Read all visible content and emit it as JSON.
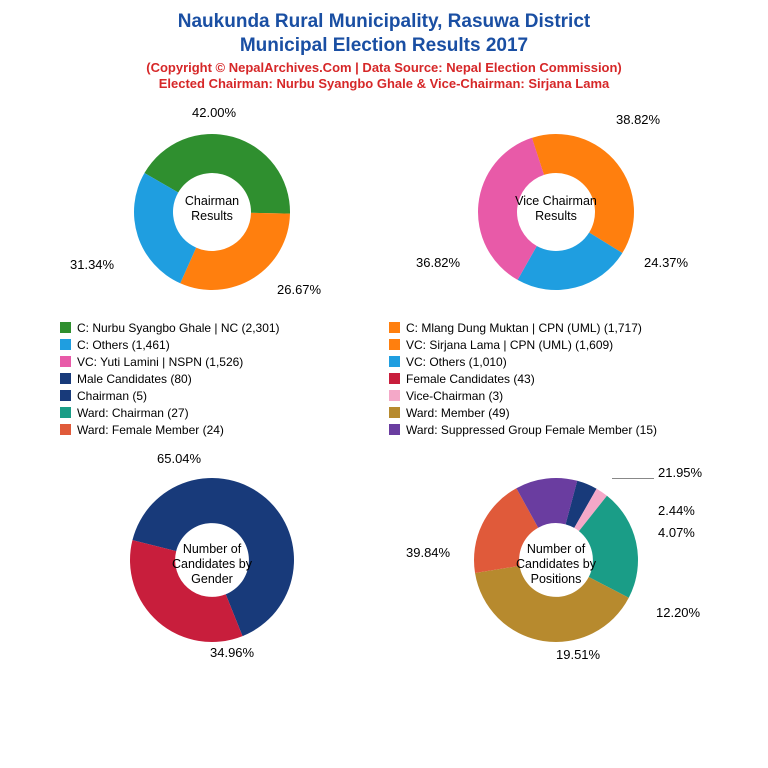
{
  "title": {
    "line1": "Naukunda Rural Municipality, Rasuwa District",
    "line2": "Municipal Election Results 2017",
    "color": "#1a4fa3",
    "sub1": "(Copyright © NepalArchives.Com | Data Source: Nepal Election Commission)",
    "sub1_color": "#d62728",
    "sub2": "Elected Chairman: Nurbu Syangbo Ghale & Vice-Chairman: Sirjana Lama",
    "sub2_color": "#d62728"
  },
  "charts": {
    "chairman": {
      "type": "donut",
      "center_label": "Chairman Results",
      "slices": [
        {
          "pct": 42.0,
          "color": "#2f8f2f",
          "label": "42.00%"
        },
        {
          "pct": 31.34,
          "color": "#ff7f0e",
          "label": "31.34%"
        },
        {
          "pct": 26.67,
          "color": "#1f9ee0",
          "label": "26.67%"
        }
      ],
      "inner_ratio": 0.5
    },
    "vicechairman": {
      "type": "donut",
      "center_label": "Vice Chairman Results",
      "slices": [
        {
          "pct": 38.82,
          "color": "#ff7f0e",
          "label": "38.82%"
        },
        {
          "pct": 24.37,
          "color": "#1f9ee0",
          "label": "24.37%"
        },
        {
          "pct": 36.82,
          "color": "#e85aa8",
          "label": "36.82%"
        }
      ],
      "inner_ratio": 0.5
    },
    "gender": {
      "type": "donut",
      "center_label": "Number of Candidates by Gender",
      "slices": [
        {
          "pct": 65.04,
          "color": "#183a7a",
          "label": "65.04%"
        },
        {
          "pct": 34.96,
          "color": "#c81e3c",
          "label": "34.96%"
        }
      ],
      "inner_ratio": 0.45
    },
    "positions": {
      "type": "donut",
      "center_label": "Number of Candidates by Positions",
      "slices": [
        {
          "pct": 4.07,
          "color": "#183a7a",
          "label": "4.07%"
        },
        {
          "pct": 2.44,
          "color": "#f4a8c8",
          "label": "2.44%"
        },
        {
          "pct": 21.95,
          "color": "#1a9d87",
          "label": "21.95%"
        },
        {
          "pct": 39.84,
          "color": "#b78a2e",
          "label": "39.84%"
        },
        {
          "pct": 19.51,
          "color": "#e05a3a",
          "label": "19.51%"
        },
        {
          "pct": 12.2,
          "color": "#6a3da0",
          "label": "12.20%"
        }
      ],
      "inner_ratio": 0.45
    }
  },
  "legend": [
    {
      "color": "#2f8f2f",
      "text": "C: Nurbu Syangbo Ghale | NC (2,301)"
    },
    {
      "color": "#ff7f0e",
      "text": "C: Mlang Dung Muktan | CPN (UML) (1,717)"
    },
    {
      "color": "#1f9ee0",
      "text": "C: Others (1,461)"
    },
    {
      "color": "#ff7f0e",
      "text": "VC: Sirjana Lama | CPN (UML) (1,609)"
    },
    {
      "color": "#e85aa8",
      "text": "VC: Yuti Lamini | NSPN (1,526)"
    },
    {
      "color": "#1f9ee0",
      "text": "VC: Others (1,010)"
    },
    {
      "color": "#183a7a",
      "text": "Male Candidates (80)"
    },
    {
      "color": "#c81e3c",
      "text": "Female Candidates (43)"
    },
    {
      "color": "#183a7a",
      "text": "Chairman (5)"
    },
    {
      "color": "#f4a8c8",
      "text": "Vice-Chairman (3)"
    },
    {
      "color": "#1a9d87",
      "text": "Ward: Chairman (27)"
    },
    {
      "color": "#b78a2e",
      "text": "Ward: Member (49)"
    },
    {
      "color": "#e05a3a",
      "text": "Ward: Female Member (24)"
    },
    {
      "color": "#6a3da0",
      "text": "Ward: Suppressed Group Female Member (15)"
    }
  ],
  "style": {
    "donut_outer_r": 78,
    "label_fontsize": 13,
    "center_fontsize": 12.5,
    "bg": "#ffffff"
  }
}
